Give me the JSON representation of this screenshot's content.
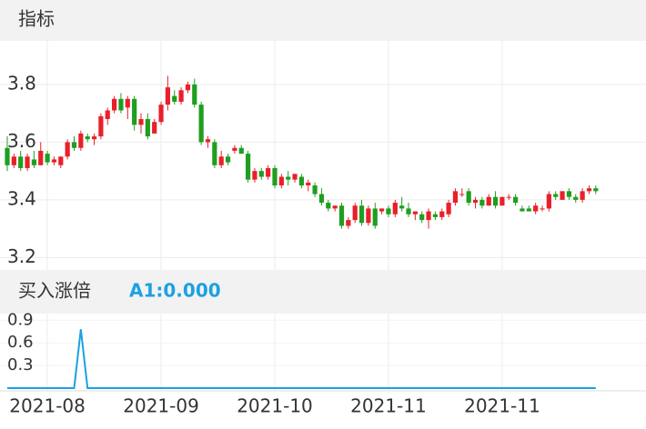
{
  "header": "指标",
  "chart_data": [
    {
      "type": "candlestick",
      "up_color": "#e8202a",
      "down_color": "#1f9e1f",
      "grid": true,
      "ylim": [
        3.157,
        3.951
      ],
      "yticks": [
        3.2,
        3.4,
        3.6,
        3.8
      ],
      "categories": [
        null,
        null,
        null,
        null,
        null,
        null,
        "2021-08",
        null,
        null,
        null,
        null,
        null,
        null,
        null,
        null,
        null,
        null,
        null,
        null,
        null,
        null,
        null,
        null,
        "2021-09",
        null,
        null,
        null,
        null,
        null,
        null,
        null,
        null,
        null,
        null,
        null,
        null,
        null,
        null,
        null,
        null,
        "2021-10",
        null,
        null,
        null,
        null,
        null,
        null,
        null,
        null,
        null,
        null,
        null,
        null,
        null,
        null,
        null,
        null,
        "2021-11",
        null,
        null,
        null,
        null,
        null,
        null,
        null,
        null,
        null,
        null,
        null,
        null,
        null,
        null,
        null,
        null,
        "2021-11",
        null,
        null,
        null,
        null,
        null,
        null,
        null,
        null,
        null,
        null,
        null,
        null,
        null,
        null
      ],
      "open": [
        3.58,
        3.52,
        3.55,
        3.51,
        3.54,
        3.52,
        3.56,
        3.53,
        3.52,
        3.55,
        3.6,
        3.58,
        3.62,
        3.61,
        3.62,
        3.68,
        3.71,
        3.75,
        3.72,
        3.75,
        3.66,
        3.68,
        3.63,
        3.67,
        3.73,
        3.76,
        3.74,
        3.78,
        3.8,
        3.73,
        3.6,
        3.6,
        3.52,
        3.55,
        3.57,
        3.58,
        3.56,
        3.47,
        3.5,
        3.48,
        3.51,
        3.45,
        3.48,
        3.47,
        3.48,
        3.45,
        3.45,
        3.42,
        3.39,
        3.37,
        3.38,
        3.31,
        3.33,
        3.38,
        3.32,
        3.37,
        3.36,
        3.37,
        3.35,
        3.38,
        3.37,
        3.35,
        3.35,
        3.33,
        3.35,
        3.34,
        3.35,
        3.39,
        3.42,
        3.43,
        3.39,
        3.4,
        3.38,
        3.41,
        3.38,
        3.41,
        3.41,
        3.37,
        3.37,
        3.36,
        3.37,
        3.37,
        3.42,
        3.4,
        3.43,
        3.41,
        3.4,
        3.43,
        3.44
      ],
      "high": [
        3.62,
        3.56,
        3.57,
        3.56,
        3.57,
        3.6,
        3.57,
        3.55,
        3.55,
        3.61,
        3.62,
        3.64,
        3.63,
        3.63,
        3.7,
        3.72,
        3.76,
        3.77,
        3.76,
        3.76,
        3.7,
        3.7,
        3.68,
        3.74,
        3.83,
        3.78,
        3.79,
        3.81,
        3.82,
        3.74,
        3.62,
        3.61,
        3.57,
        3.56,
        3.59,
        3.59,
        3.57,
        3.51,
        3.51,
        3.52,
        3.52,
        3.49,
        3.5,
        3.49,
        3.49,
        3.47,
        3.46,
        3.44,
        3.4,
        3.38,
        3.39,
        3.34,
        3.39,
        3.4,
        3.38,
        3.39,
        3.37,
        3.38,
        3.4,
        3.41,
        3.39,
        3.36,
        3.36,
        3.37,
        3.36,
        3.37,
        3.4,
        3.44,
        3.44,
        3.44,
        3.41,
        3.41,
        3.42,
        3.43,
        3.41,
        3.42,
        3.42,
        3.38,
        3.38,
        3.39,
        3.38,
        3.43,
        3.43,
        3.43,
        3.44,
        3.42,
        3.44,
        3.45,
        3.45
      ],
      "low": [
        3.5,
        3.51,
        3.5,
        3.5,
        3.51,
        3.52,
        3.52,
        3.52,
        3.51,
        3.54,
        3.57,
        3.57,
        3.6,
        3.59,
        3.61,
        3.66,
        3.7,
        3.7,
        3.68,
        3.64,
        3.63,
        3.61,
        3.63,
        3.66,
        3.71,
        3.73,
        3.73,
        3.77,
        3.72,
        3.59,
        3.58,
        3.51,
        3.51,
        3.52,
        3.56,
        3.56,
        3.46,
        3.46,
        3.47,
        3.47,
        3.44,
        3.44,
        3.45,
        3.46,
        3.44,
        3.43,
        3.41,
        3.38,
        3.36,
        3.36,
        3.3,
        3.3,
        3.32,
        3.31,
        3.31,
        3.3,
        3.35,
        3.34,
        3.34,
        3.36,
        3.34,
        3.33,
        3.32,
        3.3,
        3.33,
        3.33,
        3.34,
        3.38,
        3.41,
        3.38,
        3.37,
        3.37,
        3.38,
        3.37,
        3.38,
        3.4,
        3.38,
        3.36,
        3.36,
        3.35,
        3.36,
        3.36,
        3.4,
        3.4,
        3.4,
        3.39,
        3.39,
        3.42,
        3.42
      ],
      "close": [
        3.52,
        3.55,
        3.51,
        3.55,
        3.52,
        3.57,
        3.53,
        3.54,
        3.55,
        3.6,
        3.58,
        3.63,
        3.61,
        3.62,
        3.69,
        3.71,
        3.75,
        3.71,
        3.75,
        3.66,
        3.68,
        3.62,
        3.67,
        3.73,
        3.79,
        3.74,
        3.78,
        3.8,
        3.73,
        3.6,
        3.61,
        3.52,
        3.55,
        3.53,
        3.58,
        3.56,
        3.47,
        3.5,
        3.48,
        3.51,
        3.45,
        3.48,
        3.47,
        3.49,
        3.45,
        3.46,
        3.42,
        3.39,
        3.37,
        3.38,
        3.31,
        3.33,
        3.38,
        3.32,
        3.37,
        3.31,
        3.37,
        3.35,
        3.39,
        3.37,
        3.35,
        3.36,
        3.33,
        3.36,
        3.34,
        3.36,
        3.39,
        3.43,
        3.42,
        3.39,
        3.4,
        3.38,
        3.41,
        3.38,
        3.41,
        3.41,
        3.39,
        3.36,
        3.36,
        3.38,
        3.37,
        3.42,
        3.41,
        3.43,
        3.41,
        3.4,
        3.43,
        3.44,
        3.43
      ]
    },
    {
      "type": "line",
      "title": "买入涨倍",
      "ylim": [
        0,
        1
      ],
      "yticks": [
        0.3,
        0.6,
        0.9
      ],
      "series": [
        {
          "name": "A1:0.000",
          "color": "#1ba1e2",
          "values": [
            0,
            0,
            0,
            0,
            0,
            0,
            0,
            0,
            0,
            0,
            0,
            0.78,
            0,
            0,
            0,
            0,
            0,
            0,
            0,
            0,
            0,
            0,
            0,
            0,
            0,
            0,
            0,
            0,
            0,
            0,
            0,
            0,
            0,
            0,
            0,
            0,
            0,
            0,
            0,
            0,
            0,
            0,
            0,
            0,
            0,
            0,
            0,
            0,
            0,
            0,
            0,
            0,
            0,
            0,
            0,
            0,
            0,
            0,
            0,
            0,
            0,
            0,
            0,
            0,
            0,
            0,
            0,
            0,
            0,
            0,
            0,
            0,
            0,
            0,
            0,
            0,
            0,
            0,
            0,
            0,
            0,
            0,
            0,
            0,
            0,
            0,
            0,
            0,
            0
          ]
        }
      ]
    }
  ]
}
